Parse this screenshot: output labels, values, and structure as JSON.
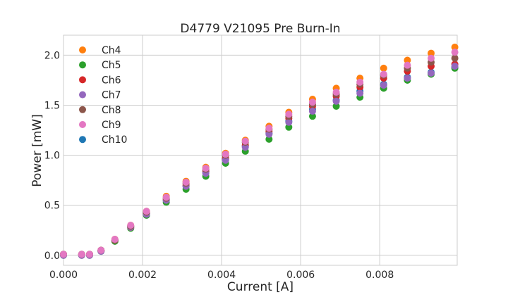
{
  "chart_data": {
    "type": "scatter",
    "title": "D4779 V21095 Pre Burn-In",
    "xlabel": "Current [A]",
    "ylabel": "Power [mW]",
    "xlim": [
      0,
      0.00996
    ],
    "ylim": [
      -0.1,
      2.2
    ],
    "xticks": [
      0,
      0.002,
      0.004,
      0.006,
      0.008
    ],
    "xtick_labels": [
      "0.000",
      "0.002",
      "0.004",
      "0.006",
      "0.008"
    ],
    "yticks": [
      0,
      0.5,
      1.0,
      1.5,
      2.0
    ],
    "ytick_labels": [
      "0.0",
      "0.5",
      "1.0",
      "1.5",
      "2.0"
    ],
    "grid": true,
    "legend_position": "top-left",
    "x": [
      0,
      0.00046,
      0.00066,
      0.00095,
      0.0013,
      0.0017,
      0.0021,
      0.0026,
      0.0031,
      0.0036,
      0.0041,
      0.0046,
      0.0052,
      0.0057,
      0.0063,
      0.0069,
      0.0075,
      0.0081,
      0.0087,
      0.0093,
      0.0099
    ],
    "series": [
      {
        "name": "Ch4",
        "color": "#ff7f0e",
        "values": [
          0.01,
          0.01,
          0.01,
          0.05,
          0.16,
          0.3,
          0.44,
          0.59,
          0.74,
          0.88,
          1.02,
          1.15,
          1.29,
          1.43,
          1.56,
          1.67,
          1.77,
          1.87,
          1.95,
          2.02,
          2.08
        ]
      },
      {
        "name": "Ch5",
        "color": "#2ca02c",
        "values": [
          0.0,
          0.0,
          0.0,
          0.04,
          0.14,
          0.27,
          0.4,
          0.53,
          0.66,
          0.79,
          0.92,
          1.04,
          1.16,
          1.28,
          1.39,
          1.49,
          1.58,
          1.67,
          1.75,
          1.81,
          1.87
        ]
      },
      {
        "name": "Ch6",
        "color": "#d62728",
        "values": [
          0.01,
          0.01,
          0.01,
          0.05,
          0.15,
          0.28,
          0.42,
          0.56,
          0.7,
          0.84,
          0.97,
          1.1,
          1.24,
          1.37,
          1.49,
          1.59,
          1.68,
          1.77,
          1.84,
          1.89,
          1.91
        ]
      },
      {
        "name": "Ch7",
        "color": "#9467bd",
        "values": [
          0.0,
          0.0,
          0.0,
          0.04,
          0.15,
          0.28,
          0.41,
          0.55,
          0.69,
          0.82,
          0.95,
          1.08,
          1.21,
          1.33,
          1.44,
          1.54,
          1.62,
          1.7,
          1.77,
          1.82,
          1.89
        ]
      },
      {
        "name": "Ch8",
        "color": "#8c564b",
        "values": [
          0.01,
          0.01,
          0.01,
          0.05,
          0.15,
          0.29,
          0.43,
          0.57,
          0.72,
          0.86,
          1.0,
          1.13,
          1.26,
          1.39,
          1.51,
          1.61,
          1.71,
          1.8,
          1.87,
          1.93,
          1.97
        ]
      },
      {
        "name": "Ch9",
        "color": "#e377c2",
        "values": [
          0.01,
          0.01,
          0.01,
          0.05,
          0.16,
          0.3,
          0.44,
          0.58,
          0.73,
          0.87,
          1.01,
          1.14,
          1.27,
          1.41,
          1.53,
          1.63,
          1.73,
          1.81,
          1.9,
          1.97,
          2.03
        ]
      },
      {
        "name": "Ch10",
        "color": "#1f77b4",
        "values": [
          0.01,
          0.01,
          0.01,
          0.05,
          0.15,
          0.29,
          0.42,
          0.55,
          0.69,
          0.83,
          0.96,
          1.09,
          1.22,
          1.34,
          1.46,
          1.55,
          1.64,
          1.71,
          1.78,
          1.83,
          1.88
        ]
      }
    ]
  }
}
